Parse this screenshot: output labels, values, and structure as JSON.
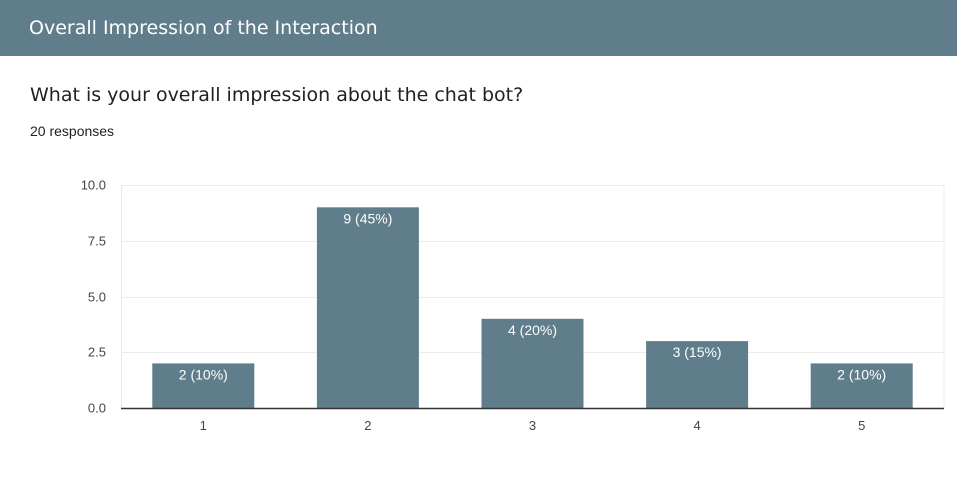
{
  "header": {
    "title": "Overall Impression of the Interaction"
  },
  "question": {
    "text": "What is your overall impression about the chat bot?",
    "responses": "20 responses"
  },
  "colors": {
    "header_bg": "#607d8b",
    "bar": "#607d8b",
    "grid": "#ebebeb",
    "axis": "#333333"
  },
  "chart_data": {
    "type": "bar",
    "categories": [
      "1",
      "2",
      "3",
      "4",
      "5"
    ],
    "values": [
      2,
      9,
      4,
      3,
      2
    ],
    "data_labels": [
      "2 (10%)",
      "9 (45%)",
      "4 (20%)",
      "3 (15%)",
      "2 (10%)"
    ],
    "ylim": [
      0,
      10
    ],
    "yticks": [
      "0.0",
      "2.5",
      "5.0",
      "7.5",
      "10.0"
    ],
    "ytick_values": [
      0,
      2.5,
      5,
      7.5,
      10
    ],
    "grid": true,
    "legend": "none"
  }
}
